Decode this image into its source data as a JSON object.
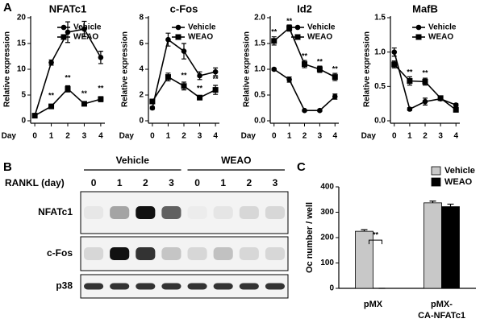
{
  "panel_labels": [
    "A",
    "B",
    "C"
  ],
  "chart_data": [
    {
      "type": "line",
      "title": "NFATc1",
      "xlabel": "Day",
      "ylabel": "Relative expression",
      "x": [
        0,
        1,
        2,
        3,
        4
      ],
      "xlim": [
        -0.25,
        4.25
      ],
      "xticks": [
        0,
        1,
        2,
        3,
        4
      ],
      "ylim": [
        0,
        20
      ],
      "yticks": [
        0,
        5,
        10,
        15,
        20
      ],
      "legend": "upper right",
      "series": [
        {
          "name": "Vehicle",
          "color": "#000000",
          "marker": "circle",
          "values": [
            1,
            11.3,
            17.2,
            17.8,
            12.3
          ],
          "errors": [
            0.3,
            0.5,
            2,
            1.5,
            1.2
          ]
        },
        {
          "name": "WEAO",
          "color": "#000000",
          "marker": "square",
          "values": [
            1,
            2.8,
            6.2,
            3.3,
            4.2
          ],
          "errors": [
            0.2,
            0.3,
            0.6,
            0.3,
            0.5
          ]
        }
      ],
      "annotations": [
        {
          "text": "**",
          "x": 1,
          "y": 4.8
        },
        {
          "text": "**",
          "x": 2,
          "y": 8.3
        },
        {
          "text": "**",
          "x": 3,
          "y": 5.2
        },
        {
          "text": "**",
          "x": 4,
          "y": 6.2
        }
      ]
    },
    {
      "type": "line",
      "title": "c-Fos",
      "xlabel": "Day",
      "ylabel": "Relative expression",
      "x": [
        0,
        1,
        2,
        3,
        4
      ],
      "xlim": [
        -0.25,
        4.25
      ],
      "xticks": [
        0,
        1,
        2,
        3,
        4
      ],
      "ylim": [
        0,
        8
      ],
      "yticks": [
        0,
        2,
        4,
        6,
        8
      ],
      "legend": "upper right",
      "series": [
        {
          "name": "Vehicle",
          "color": "#000000",
          "marker": "circle",
          "values": [
            1,
            6.3,
            5.4,
            3.5,
            3.8
          ],
          "errors": [
            0.1,
            0.5,
            0.6,
            0.3,
            0.3
          ]
        },
        {
          "name": "WEAO",
          "color": "#000000",
          "marker": "square",
          "values": [
            1.5,
            3.4,
            2.7,
            1.8,
            2.4
          ],
          "errors": [
            0.1,
            0.3,
            0.3,
            0.15,
            0.35
          ]
        }
      ],
      "annotations": [
        {
          "text": "**",
          "x": 2,
          "y": 3.5
        },
        {
          "text": "**",
          "x": 3,
          "y": 2.5
        },
        {
          "text": "**",
          "x": 4,
          "y": 3.2
        }
      ]
    },
    {
      "type": "line",
      "title": "Id2",
      "xlabel": "Day",
      "ylabel": "Relative expression",
      "x": [
        0,
        1,
        2,
        3,
        4
      ],
      "xlim": [
        -0.25,
        4.25
      ],
      "xticks": [
        0,
        1,
        2,
        3,
        4
      ],
      "ylim": [
        0,
        2
      ],
      "yticks": [
        {
          "value": 0,
          "label": "0.0"
        },
        {
          "value": 0.5,
          "label": "0.5"
        },
        {
          "value": 1,
          "label": "1.0"
        },
        {
          "value": 1.5,
          "label": "1.5"
        },
        {
          "value": 2,
          "label": "2.0"
        }
      ],
      "legend": "upper right",
      "series": [
        {
          "name": "Vehicle",
          "color": "#000000",
          "marker": "circle",
          "values": [
            1,
            0.8,
            0.2,
            0.2,
            0.47
          ],
          "errors": [
            0.02,
            0.05,
            0.02,
            0.02,
            0.05
          ]
        },
        {
          "name": "WEAO",
          "color": "#000000",
          "marker": "square",
          "values": [
            1.55,
            1.8,
            1.1,
            1,
            0.85
          ],
          "errors": [
            0.08,
            0.06,
            0.07,
            0.06,
            0.07
          ]
        }
      ],
      "annotations": [
        {
          "text": "**",
          "x": 0,
          "y": 1.72
        },
        {
          "text": "**",
          "x": 1,
          "y": 1.93
        },
        {
          "text": "**",
          "x": 2,
          "y": 1.25
        },
        {
          "text": "**",
          "x": 3,
          "y": 1.14
        },
        {
          "text": "**",
          "x": 4,
          "y": 1
        }
      ]
    },
    {
      "type": "line",
      "title": "MafB",
      "xlabel": "Day",
      "ylabel": "Relative expression",
      "x": [
        0,
        1,
        2,
        3,
        4
      ],
      "xlim": [
        -0.25,
        4.25
      ],
      "xticks": [
        0,
        1,
        2,
        3,
        4
      ],
      "ylim": [
        0,
        1.5
      ],
      "yticks": [
        {
          "value": 0,
          "label": "0.0"
        },
        {
          "value": 0.5,
          "label": "0.5"
        },
        {
          "value": 1,
          "label": "1.0"
        },
        {
          "value": 1.5,
          "label": "1.5"
        }
      ],
      "legend": "upper right",
      "series": [
        {
          "name": "Vehicle",
          "color": "#000000",
          "marker": "circle",
          "values": [
            1,
            0.17,
            0.28,
            0.32,
            0.23
          ],
          "errors": [
            0.06,
            0.02,
            0.05,
            0.02,
            0.02
          ]
        },
        {
          "name": "WEAO",
          "color": "#000000",
          "marker": "square",
          "values": [
            0.82,
            0.58,
            0.57,
            0.33,
            0.16
          ],
          "errors": [
            0.05,
            0.06,
            0.05,
            0.02,
            0.02
          ]
        }
      ],
      "annotations": [
        {
          "text": "**",
          "x": 1,
          "y": 0.7
        },
        {
          "text": "**",
          "x": 2,
          "y": 0.69
        }
      ]
    },
    {
      "type": "bar",
      "ylabel": "Oc number / well",
      "categories": [
        [
          "pMX"
        ],
        [
          "pMX-",
          "CA-NFATc1"
        ]
      ],
      "ylim": [
        0,
        400
      ],
      "yticks": [
        0,
        100,
        200,
        300,
        400
      ],
      "legend": "upper right",
      "series": [
        {
          "name": "Vehicle",
          "color": "#c8c8c8",
          "values": [
            225,
            337
          ],
          "errors": [
            6,
            7
          ]
        },
        {
          "name": "WEAO",
          "color": "#000000",
          "values": [
            0,
            322
          ],
          "errors": [
            0,
            10
          ]
        }
      ],
      "annotations": [
        {
          "text": "**",
          "x": 0,
          "y": 190
        }
      ]
    }
  ],
  "blot": {
    "groups": [
      "Vehicle",
      "WEAO"
    ],
    "lane_label": "RANKL (day)",
    "lanes": [
      0,
      1,
      2,
      3,
      0,
      1,
      2,
      3
    ],
    "rows": [
      "NFATc1",
      "c-Fos",
      "p38"
    ]
  }
}
